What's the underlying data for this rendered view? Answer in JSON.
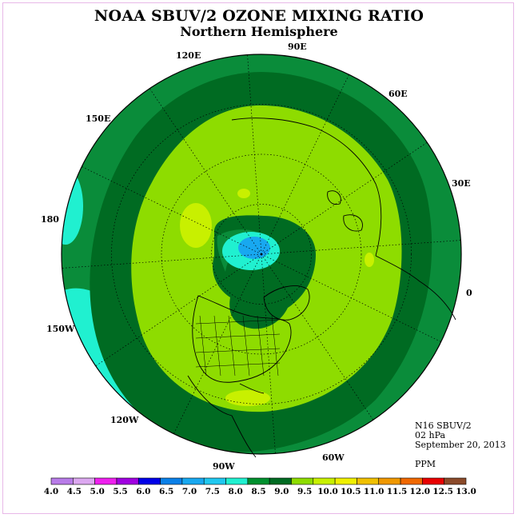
{
  "title": "NOAA SBUV/2 OZONE MIXING RATIO",
  "subtitle": "Northern Hemisphere",
  "longitude_labels": [
    "90E",
    "60E",
    "30E",
    "0",
    "60W",
    "90W",
    "120W",
    "150W",
    "180",
    "150E",
    "120E"
  ],
  "info": {
    "instrument": "N16 SBUV/2",
    "level": "02 hPa",
    "date": "September 20, 2013",
    "units": "PPM"
  },
  "colorbar": {
    "ticks": [
      "4.0",
      "4.5",
      "5.0",
      "5.5",
      "6.0",
      "6.5",
      "7.0",
      "7.5",
      "8.0",
      "8.5",
      "9.0",
      "9.5",
      "10.0",
      "10.5",
      "11.0",
      "11.5",
      "12.0",
      "12.5",
      "13.0"
    ],
    "colors": [
      "#b87ce8",
      "#dca8f0",
      "#ee20ee",
      "#a000e0",
      "#0000e8",
      "#0a80e8",
      "#18a8f0",
      "#20c8f0",
      "#20f0d0",
      "#00902e",
      "#006b22",
      "#8edc00",
      "#c8f000",
      "#f0f000",
      "#f0c000",
      "#f09800",
      "#f06800",
      "#e80000",
      "#8b4a2a"
    ]
  },
  "map_colors": {
    "outer": "#0a8c3a",
    "dark_band": "#006b22",
    "inner": "#8edc00",
    "light": "#c8f000",
    "cyan": "#20f0d0",
    "blue": "#18a8f0"
  }
}
